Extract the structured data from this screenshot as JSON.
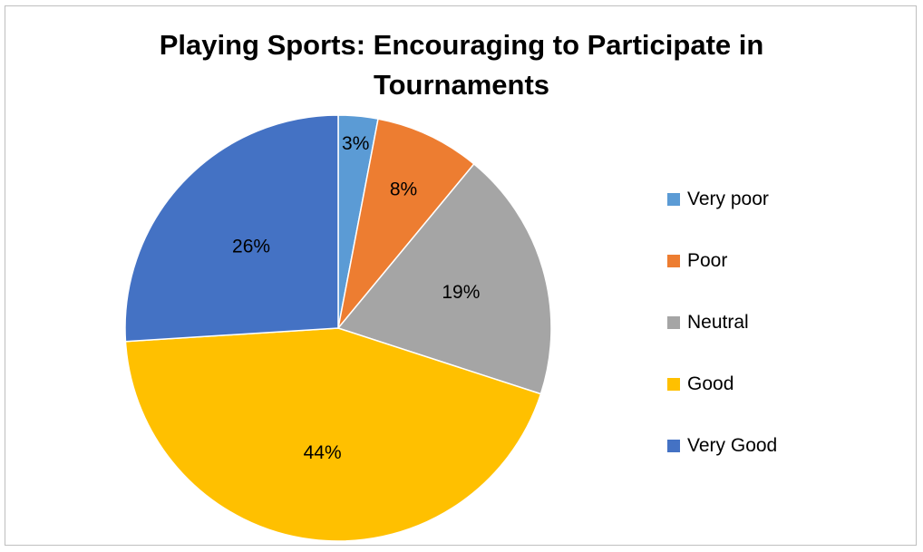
{
  "chart_data": {
    "type": "pie",
    "title_lines": [
      "Playing Sports: Encouraging to Participate in",
      "Tournaments"
    ],
    "categories": [
      "Very poor",
      "Poor",
      "Neutral",
      "Good",
      "Very Good"
    ],
    "values": [
      3,
      8,
      19,
      44,
      26
    ],
    "labels": [
      "3%",
      "8%",
      "19%",
      "44%",
      "26%"
    ],
    "colors": [
      "#5b9bd5",
      "#ed7d31",
      "#a5a5a5",
      "#ffc000",
      "#4472c4"
    ],
    "legend_position": "right"
  }
}
